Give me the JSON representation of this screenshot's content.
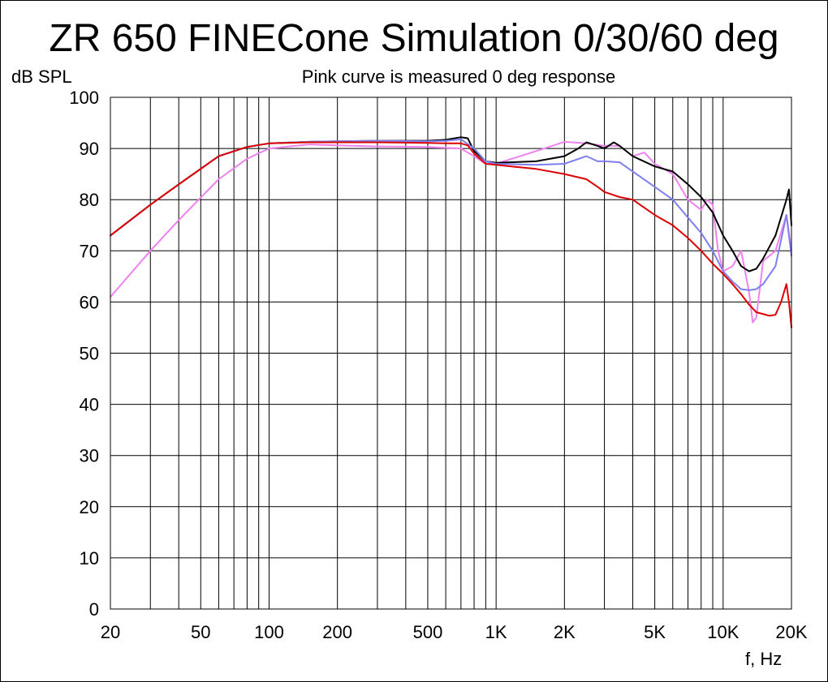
{
  "chart_data": {
    "type": "line",
    "title": "ZR 650 FINECone Simulation 0/30/60 deg",
    "subtitle": "Pink curve is measured 0 deg response",
    "ylabel": "dB SPL",
    "xlabel": "f, Hz",
    "x_scale": "log",
    "xlim": [
      20,
      20000
    ],
    "ylim": [
      0,
      100
    ],
    "grid": true,
    "x_ticks": [
      20,
      50,
      100,
      200,
      500,
      1000,
      2000,
      5000,
      10000,
      20000
    ],
    "x_tick_labels": [
      "20",
      "50",
      "100",
      "200",
      "500",
      "1K",
      "2K",
      "5K",
      "10K",
      "20K"
    ],
    "y_ticks": [
      0,
      10,
      20,
      30,
      40,
      50,
      60,
      70,
      80,
      90,
      100
    ],
    "y_tick_labels": [
      "0",
      "10",
      "20",
      "30",
      "40",
      "50",
      "60",
      "70",
      "80",
      "90",
      "100"
    ],
    "series": [
      {
        "color": "#ee82ee",
        "x": [
          20,
          30,
          40,
          60,
          80,
          100,
          150,
          200,
          300,
          500,
          700,
          800,
          900,
          1000,
          1500,
          2000,
          2500,
          3000,
          3500,
          4000,
          4500,
          5000,
          6000,
          7000,
          8000,
          8500,
          9000,
          9500,
          10000,
          11000,
          12000,
          13000,
          13500,
          14000,
          15000,
          17000,
          19000,
          20000
        ],
        "y": [
          61,
          70,
          76,
          84,
          88,
          90,
          90.8,
          90.6,
          90.4,
          90.3,
          90,
          88.5,
          87,
          87,
          89.5,
          91.3,
          91,
          90.5,
          90.5,
          88.5,
          89.2,
          87,
          85,
          80,
          78,
          80,
          79,
          70,
          66,
          67,
          70,
          62,
          56,
          57,
          68,
          70,
          77,
          70
        ]
      },
      {
        "color": "#000000",
        "x": [
          20,
          30,
          40,
          60,
          80,
          100,
          150,
          200,
          300,
          500,
          600,
          700,
          750,
          800,
          900,
          1000,
          1500,
          2000,
          2300,
          2500,
          2800,
          3000,
          3300,
          3500,
          4000,
          5000,
          6000,
          7000,
          8000,
          9000,
          10000,
          11000,
          12000,
          13000,
          14000,
          15000,
          17000,
          19000,
          19500,
          20000
        ],
        "y": [
          73,
          79,
          83,
          88.5,
          90.3,
          91,
          91.3,
          91.4,
          91.5,
          91.5,
          91.7,
          92.2,
          92,
          89.5,
          87.5,
          87.2,
          87.5,
          88.5,
          90,
          91.2,
          90.5,
          90,
          91.2,
          90.5,
          88.5,
          86.5,
          85.5,
          83,
          80.5,
          77.5,
          73,
          70,
          67,
          66,
          66.5,
          68.5,
          73,
          80,
          82,
          75
        ]
      },
      {
        "color": "#7f7ff0",
        "x": [
          20,
          30,
          40,
          60,
          80,
          100,
          150,
          200,
          300,
          500,
          600,
          700,
          800,
          900,
          1000,
          1500,
          2000,
          2500,
          2800,
          3000,
          3500,
          4000,
          5000,
          6000,
          7000,
          8000,
          9000,
          10000,
          11000,
          12000,
          13000,
          14000,
          15000,
          17000,
          19000,
          20000
        ],
        "y": [
          73,
          79,
          83,
          88.5,
          90.3,
          91,
          91.3,
          91.4,
          91.5,
          91.4,
          91.5,
          91.8,
          90,
          87.5,
          87,
          86.8,
          87,
          88.5,
          87.5,
          87.5,
          87.3,
          85.5,
          82.5,
          80,
          76.5,
          73.5,
          70,
          66,
          64,
          62.5,
          62.3,
          62.5,
          63.5,
          67,
          77,
          69
        ]
      },
      {
        "color": "#dd0000",
        "x": [
          20,
          30,
          40,
          60,
          80,
          100,
          150,
          200,
          300,
          500,
          600,
          700,
          750,
          800,
          900,
          1000,
          1500,
          2000,
          2500,
          2800,
          3000,
          3500,
          4000,
          5000,
          6000,
          7000,
          8000,
          9000,
          10000,
          11000,
          12000,
          13000,
          14000,
          16000,
          17000,
          18000,
          19000,
          19500,
          20000
        ],
        "y": [
          73,
          79,
          83,
          88.5,
          90.3,
          91,
          91.2,
          91.2,
          91.2,
          91.1,
          91,
          91,
          90.6,
          89,
          87,
          86.8,
          86,
          85,
          84,
          82.5,
          81.5,
          80.5,
          80,
          77,
          75,
          72.5,
          70,
          67.5,
          65.5,
          63.5,
          61.5,
          59.5,
          58,
          57.3,
          57.5,
          60,
          63.5,
          60,
          55
        ]
      }
    ]
  }
}
